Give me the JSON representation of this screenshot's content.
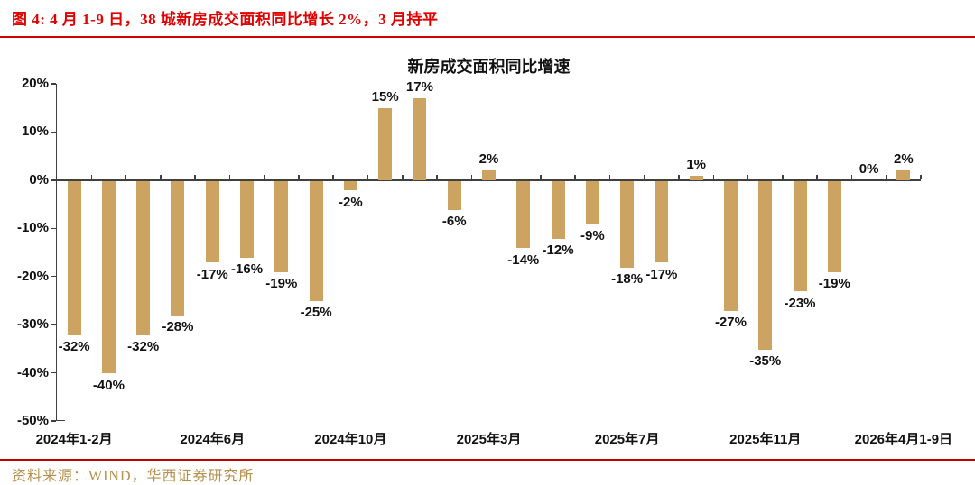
{
  "header": {
    "title": "图 4: 4 月 1-9 日，38 城新房成交面积同比增长 2%，3 月持平"
  },
  "footer": {
    "source": "资料来源：WIND，华西证券研究所"
  },
  "colors": {
    "header_red": "#DF0000",
    "rule_red": "#D40000",
    "source_rule_red": "#C00000",
    "bar_gold": "#CCA360",
    "source_gold": "#B6914E",
    "axis_gray": "#404040",
    "text_black": "#111111"
  },
  "chart_data": {
    "type": "bar",
    "title": "新房成交面积同比增速",
    "values": [
      -32,
      -40,
      -32,
      -28,
      -17,
      -16,
      -19,
      -25,
      -2,
      15,
      17,
      -6,
      2,
      -14,
      -12,
      -9,
      -18,
      -17,
      1,
      -27,
      -35,
      -23,
      -19,
      0,
      2
    ],
    "bar_labels": [
      "-32%",
      "-40%",
      "-32%",
      "-28%",
      "-17%",
      "-16%",
      "-19%",
      "-25%",
      "-2%",
      "15%",
      "17%",
      "-6%",
      "2%",
      "-14%",
      "-12%",
      "-9%",
      "-18%",
      "-17%",
      "1%",
      "-27%",
      "-35%",
      "-23%",
      "-19%",
      "0%",
      "2%"
    ],
    "x_tick_labels": [
      {
        "index": 0,
        "label": "2024年1-2月"
      },
      {
        "index": 4,
        "label": "2024年6月"
      },
      {
        "index": 8,
        "label": "2024年10月"
      },
      {
        "index": 12,
        "label": "2025年3月"
      },
      {
        "index": 16,
        "label": "2025年7月"
      },
      {
        "index": 20,
        "label": "2025年11月"
      },
      {
        "index": 24,
        "label": "2026年4月1-9日"
      }
    ],
    "y_ticks": [
      "20%",
      "10%",
      "0%",
      "-10%",
      "-20%",
      "-30%",
      "-40%",
      "-50%"
    ],
    "ylim": [
      -50,
      20
    ],
    "y_step": 10,
    "bar_color": "#CCA360",
    "grid": false,
    "legend": false
  }
}
